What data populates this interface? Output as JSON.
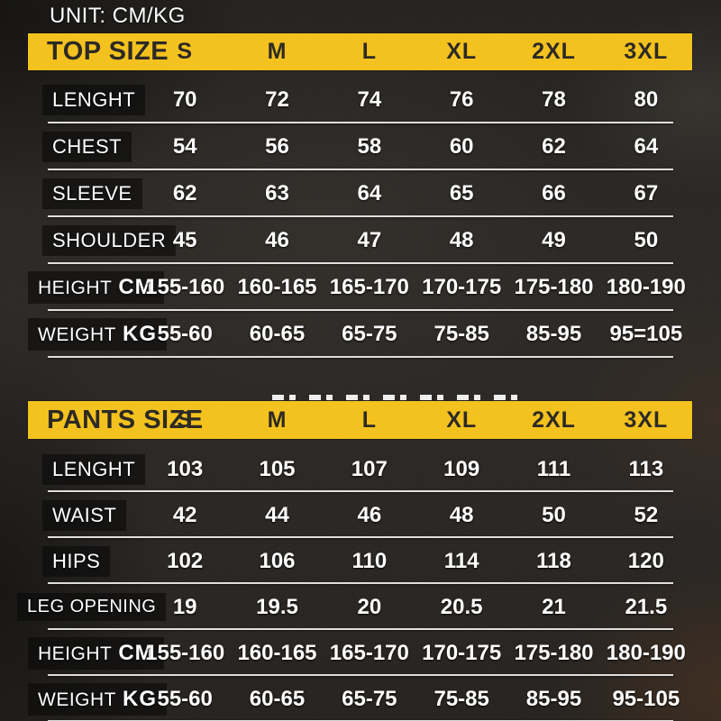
{
  "unit_label": "UNIT: CM/KG",
  "colors": {
    "accent_yellow": "#f4c21e",
    "band_text": "#2d2a25",
    "value_text": "#ffffff",
    "background": "#262320",
    "separator": "#f8f8f8"
  },
  "tables": [
    {
      "title": "TOP SIZE",
      "sizes": [
        "S",
        "M",
        "L",
        "XL",
        "2XL",
        "3XL"
      ],
      "rows": [
        {
          "label": "LENGHT",
          "unit": "",
          "values": [
            "70",
            "72",
            "74",
            "76",
            "78",
            "80"
          ]
        },
        {
          "label": "CHEST",
          "unit": "",
          "values": [
            "54",
            "56",
            "58",
            "60",
            "62",
            "64"
          ]
        },
        {
          "label": "SLEEVE",
          "unit": "",
          "values": [
            "62",
            "63",
            "64",
            "65",
            "66",
            "67"
          ]
        },
        {
          "label": "SHOULDER",
          "unit": "",
          "values": [
            "45",
            "46",
            "47",
            "48",
            "49",
            "50"
          ]
        },
        {
          "label": "HEIGHT",
          "unit": "CM",
          "values": [
            "155-160",
            "160-165",
            "165-170",
            "170-175",
            "175-180",
            "180-190"
          ]
        },
        {
          "label": "WEIGHT",
          "unit": "KG",
          "values": [
            "55-60",
            "60-65",
            "65-75",
            "75-85",
            "85-95",
            "95=105"
          ]
        }
      ]
    },
    {
      "title": "PANTS SIZE",
      "sizes": [
        "S",
        "M",
        "L",
        "XL",
        "2XL",
        "3XL"
      ],
      "rows": [
        {
          "label": "LENGHT",
          "unit": "",
          "values": [
            "103",
            "105",
            "107",
            "109",
            "111",
            "113"
          ]
        },
        {
          "label": "WAIST",
          "unit": "",
          "values": [
            "42",
            "44",
            "46",
            "48",
            "50",
            "52"
          ]
        },
        {
          "label": "HIPS",
          "unit": "",
          "values": [
            "102",
            "106",
            "110",
            "114",
            "118",
            "120"
          ]
        },
        {
          "label": "LEG OPENING",
          "unit": "",
          "values": [
            "19",
            "19.5",
            "20",
            "20.5",
            "21",
            "21.5"
          ]
        },
        {
          "label": "HEIGHT",
          "unit": "CM",
          "values": [
            "155-160",
            "160-165",
            "165-170",
            "170-175",
            "175-180",
            "180-190"
          ]
        },
        {
          "label": "WEIGHT",
          "unit": "KG",
          "values": [
            "55-60",
            "60-65",
            "65-75",
            "75-85",
            "85-95",
            "95-105"
          ]
        }
      ]
    }
  ]
}
